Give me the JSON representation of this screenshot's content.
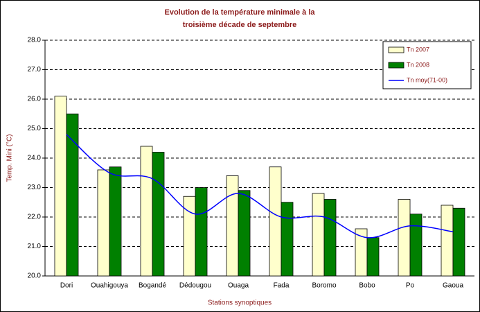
{
  "chart_data": {
    "type": "bar",
    "title": [
      "Evolution de la température minimale à la",
      "troisième décade de septembre"
    ],
    "x_label": "Stations synoptiques",
    "y_label": "Temp. Mini (°C)",
    "categories": [
      "Dori",
      "Ouahigouya",
      "Bogandé",
      "Dédougou",
      "Ouaga",
      "Fada",
      "Boromo",
      "Bobo",
      "Po",
      "Gaoua"
    ],
    "series": [
      {
        "name": "Tn 2007",
        "type": "bar",
        "color": "#ffffcc",
        "values": [
          26.1,
          23.6,
          24.4,
          22.7,
          23.4,
          23.7,
          22.8,
          21.6,
          22.6,
          22.4
        ]
      },
      {
        "name": "Tn 2008",
        "type": "bar",
        "color": "#008000",
        "values": [
          25.5,
          23.7,
          24.2,
          23.0,
          22.9,
          22.5,
          22.6,
          21.3,
          22.1,
          22.3
        ]
      },
      {
        "name": "Tn moy(71-00)",
        "type": "line",
        "color": "#0000ff",
        "values": [
          24.8,
          23.5,
          23.3,
          22.1,
          22.8,
          22.0,
          22.0,
          21.3,
          21.7,
          21.5
        ]
      }
    ],
    "ylim": [
      20,
      28
    ],
    "yticks": [
      {
        "value": 20,
        "label": "20.0"
      },
      {
        "value": 21,
        "label": "21.0"
      },
      {
        "value": 22,
        "label": "22.0"
      },
      {
        "value": 23,
        "label": "23.0"
      },
      {
        "value": 24,
        "label": "24.0"
      },
      {
        "value": 25,
        "label": "25.0"
      },
      {
        "value": 26,
        "label": "26.0"
      },
      {
        "value": 27,
        "label": "27.0"
      },
      {
        "value": 28,
        "label": "28.0"
      }
    ],
    "grid": true,
    "legend": "top-right"
  }
}
